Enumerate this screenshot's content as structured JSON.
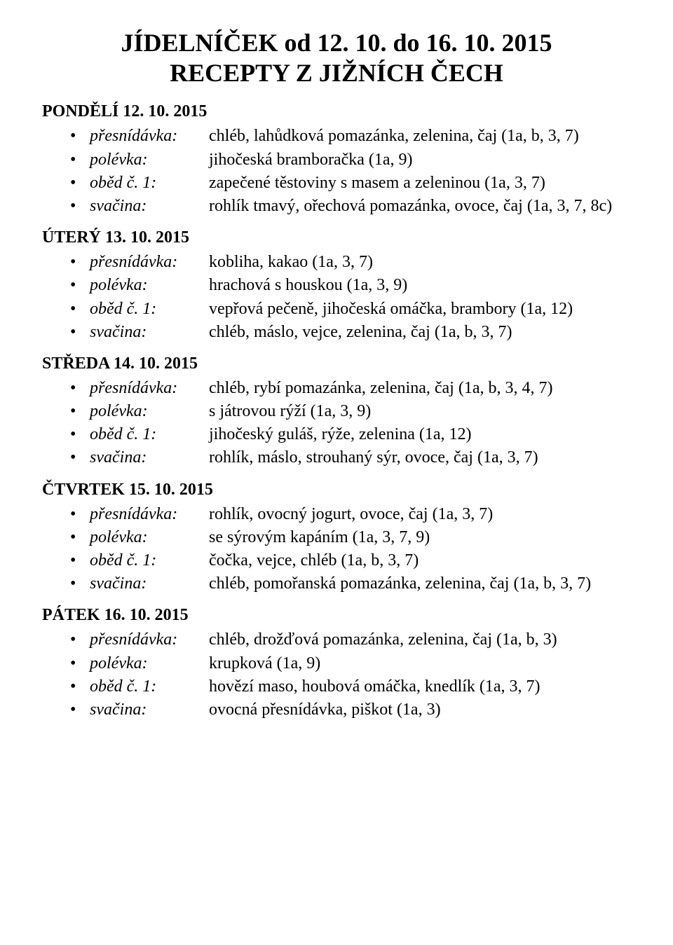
{
  "title": {
    "line1": "JÍDELNÍČEK od 12. 10. do 16. 10. 2015",
    "line2": "RECEPTY Z JIŽNÍCH ČECH"
  },
  "days": [
    {
      "heading": "PONDĚLÍ  12. 10. 2015",
      "meals": [
        {
          "label": "přesnídávka:",
          "value": "chléb, lahůdková pomazánka, zelenina, čaj (1a, b, 3, 7)"
        },
        {
          "label": "polévka:",
          "value": "jihočeská bramboračka (1a, 9)"
        },
        {
          "label": "oběd č. 1:",
          "value": "zapečené těstoviny s masem a zeleninou (1a, 3, 7)"
        },
        {
          "label": "svačina:",
          "value": "rohlík tmavý, ořechová pomazánka, ovoce, čaj (1a, 3, 7, 8c)"
        }
      ]
    },
    {
      "heading": "ÚTERÝ  13. 10. 2015",
      "meals": [
        {
          "label": "přesnídávka:",
          "value": "kobliha, kakao (1a, 3, 7)"
        },
        {
          "label": "polévka:",
          "value": "hrachová s houskou (1a, 3, 9)"
        },
        {
          "label": "oběd č. 1:",
          "value": "vepřová pečeně, jihočeská omáčka, brambory (1a, 12)"
        },
        {
          "label": "svačina:",
          "value": "chléb, máslo, vejce, zelenina, čaj (1a, b, 3, 7)"
        }
      ]
    },
    {
      "heading": "STŘEDA  14. 10. 2015",
      "meals": [
        {
          "label": "přesnídávka:",
          "value": "chléb, rybí pomazánka, zelenina, čaj (1a, b, 3, 4, 7)"
        },
        {
          "label": "polévka:",
          "value": "s játrovou rýží (1a, 3, 9)"
        },
        {
          "label": "oběd č. 1:",
          "value": "jihočeský guláš, rýže, zelenina (1a, 12)"
        },
        {
          "label": "svačina:",
          "value": "rohlík, máslo, strouhaný sýr, ovoce, čaj (1a, 3, 7)"
        }
      ]
    },
    {
      "heading": "ČTVRTEK  15. 10. 2015",
      "meals": [
        {
          "label": "přesnídávka:",
          "value": "rohlík, ovocný jogurt, ovoce, čaj (1a, 3, 7)"
        },
        {
          "label": "polévka:",
          "value": "se sýrovým kapáním (1a, 3, 7, 9)"
        },
        {
          "label": "oběd č. 1:",
          "value": "čočka, vejce, chléb (1a, b, 3, 7)"
        },
        {
          "label": "svačina:",
          "value": "chléb, pomořanská pomazánka, zelenina, čaj (1a, b, 3, 7)"
        }
      ]
    },
    {
      "heading": "PÁTEK  16. 10. 2015",
      "meals": [
        {
          "label": "přesnídávka:",
          "value": "chléb, drožďová pomazánka, zelenina, čaj (1a, b, 3)"
        },
        {
          "label": "polévka:",
          "value": "krupková (1a, 9)"
        },
        {
          "label": "oběd č. 1:",
          "value": "hovězí maso, houbová omáčka, knedlík (1a, 3, 7)"
        },
        {
          "label": "svačina:",
          "value": "ovocná přesnídávka, piškot (1a, 3)"
        }
      ]
    }
  ]
}
